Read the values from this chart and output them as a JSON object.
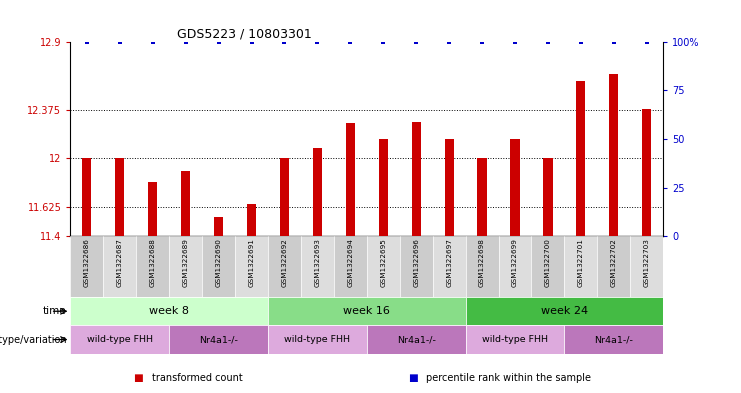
{
  "title": "GDS5223 / 10803301",
  "samples": [
    "GSM1322686",
    "GSM1322687",
    "GSM1322688",
    "GSM1322689",
    "GSM1322690",
    "GSM1322691",
    "GSM1322692",
    "GSM1322693",
    "GSM1322694",
    "GSM1322695",
    "GSM1322696",
    "GSM1322697",
    "GSM1322698",
    "GSM1322699",
    "GSM1322700",
    "GSM1322701",
    "GSM1322702",
    "GSM1322703"
  ],
  "transformed_count": [
    12.0,
    12.0,
    11.82,
    11.9,
    11.55,
    11.65,
    12.0,
    12.08,
    12.27,
    12.15,
    12.28,
    12.15,
    12.0,
    12.15,
    12.0,
    12.6,
    12.65,
    12.38
  ],
  "percentile_rank": [
    100,
    100,
    100,
    100,
    100,
    100,
    100,
    100,
    100,
    100,
    100,
    100,
    100,
    100,
    100,
    100,
    100,
    100
  ],
  "ylim_left": [
    11.4,
    12.9
  ],
  "yticks_left": [
    11.4,
    11.625,
    12.0,
    12.375,
    12.9
  ],
  "ytick_labels_left": [
    "11.4",
    "11.625",
    "12",
    "12.375",
    "12.9"
  ],
  "ylim_right": [
    0,
    100
  ],
  "yticks_right": [
    0,
    25,
    50,
    75,
    100
  ],
  "ytick_labels_right": [
    "0",
    "25",
    "50",
    "75",
    "100%"
  ],
  "bar_color": "#cc0000",
  "dot_color": "#0000cc",
  "time_groups": [
    {
      "label": "week 8",
      "start": 0,
      "end": 6,
      "color": "#ccffcc"
    },
    {
      "label": "week 16",
      "start": 6,
      "end": 12,
      "color": "#88dd88"
    },
    {
      "label": "week 24",
      "start": 12,
      "end": 18,
      "color": "#44bb44"
    }
  ],
  "genotype_groups": [
    {
      "label": "wild-type FHH",
      "start": 0,
      "end": 3,
      "color": "#ddaadd"
    },
    {
      "label": "Nr4a1-/-",
      "start": 3,
      "end": 6,
      "color": "#bb77bb"
    },
    {
      "label": "wild-type FHH",
      "start": 6,
      "end": 9,
      "color": "#ddaadd"
    },
    {
      "label": "Nr4a1-/-",
      "start": 9,
      "end": 12,
      "color": "#bb77bb"
    },
    {
      "label": "wild-type FHH",
      "start": 12,
      "end": 15,
      "color": "#ddaadd"
    },
    {
      "label": "Nr4a1-/-",
      "start": 15,
      "end": 18,
      "color": "#bb77bb"
    }
  ],
  "legend_items": [
    {
      "label": "transformed count",
      "color": "#cc0000"
    },
    {
      "label": "percentile rank within the sample",
      "color": "#0000cc"
    }
  ],
  "background_color": "#ffffff",
  "row_label_time": "time",
  "row_label_genotype": "genotype/variation",
  "dotted_lines": [
    11.625,
    12.0,
    12.375
  ]
}
